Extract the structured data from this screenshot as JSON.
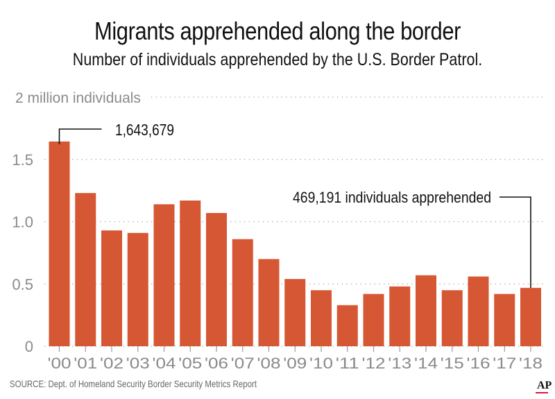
{
  "header": {
    "title": "Migrants apprehended along the border",
    "subtitle": "Number of individuals apprehended by the U.S. Border Patrol."
  },
  "footer": {
    "source": "SOURCE: Dept. of Homeland Security Border Security Metrics Report",
    "logo": "AP"
  },
  "colors": {
    "bar": "#d65733",
    "grid": "#9a9a9a",
    "axis_text": "#8a8a8a",
    "annotation": "#111111",
    "logo_underline": "#d6164a"
  },
  "chart_data": {
    "type": "bar",
    "title": "Migrants apprehended along the border",
    "subtitle": "Number of individuals apprehended by the U.S. Border Patrol.",
    "xlabel": "",
    "ylabel": "2 million individuals",
    "ylim": [
      0,
      2.0
    ],
    "yticks": [
      0,
      0.5,
      1.0,
      1.5,
      2.0
    ],
    "ytick_labels": [
      "0",
      "0.5",
      "1.0",
      "1.5",
      "2 million individuals"
    ],
    "grid": true,
    "categories": [
      "'00",
      "'01",
      "'02",
      "'03",
      "'04",
      "'05",
      "'06",
      "'07",
      "'08",
      "'09",
      "'10",
      "'11",
      "'12",
      "'13",
      "'14",
      "'15",
      "'16",
      "'17",
      "'18"
    ],
    "values": [
      1.644,
      1.23,
      0.93,
      0.91,
      1.14,
      1.17,
      1.07,
      0.86,
      0.7,
      0.54,
      0.45,
      0.33,
      0.42,
      0.48,
      0.57,
      0.45,
      0.56,
      0.42,
      0.469
    ],
    "annotations": [
      {
        "category": "'00",
        "text": "1,643,679",
        "side": "right"
      },
      {
        "category": "'18",
        "text": "469,191 individuals apprehended",
        "side": "left"
      }
    ]
  }
}
